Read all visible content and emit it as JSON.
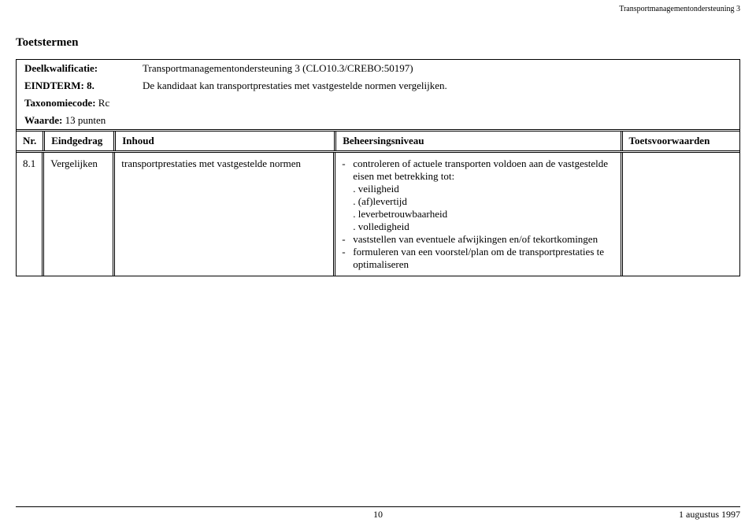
{
  "header_right": "Transportmanagementondersteuning 3",
  "section_title": "Toetstermen",
  "info": {
    "deelkwalificatie_label": "Deelkwalificatie:",
    "deelkwalificatie_value": "Transportmanagementondersteuning 3 (CLO10.3/CREBO:50197)",
    "eindterm_label": "EINDTERM: 8.",
    "eindterm_value": "De kandidaat kan transportprestaties met vastgestelde normen vergelijken.",
    "taxonomiecode_label": "Taxonomiecode:",
    "taxonomiecode_value": "Rc",
    "waarde_label": "Waarde:",
    "waarde_value": "13 punten"
  },
  "columns": {
    "nr": "Nr.",
    "eindgedrag": "Eindgedrag",
    "inhoud": "Inhoud",
    "beheersingsniveau": "Beheersingsniveau",
    "toetsvoorwaarden": "Toetsvoorwaarden"
  },
  "row": {
    "nr": "8.1",
    "eindgedrag": "Vergelijken",
    "inhoud": "transportprestaties met vastgestelde normen",
    "bn": {
      "item1_lead": "controleren of actuele transporten voldoen aan de vastgestelde eisen met betrekking tot:",
      "sub1": "veiligheid",
      "sub2": "(af)levertijd",
      "sub3": "leverbetrouwbaarheid",
      "sub4": "volledigheid",
      "item2": "vaststellen van eventuele afwijkingen en/of tekortkomingen",
      "item3": "formuleren van een voorstel/plan om de transportprestaties te optimaliseren"
    },
    "tv": ""
  },
  "footer": {
    "page": "10",
    "date": "1 augustus 1997"
  }
}
